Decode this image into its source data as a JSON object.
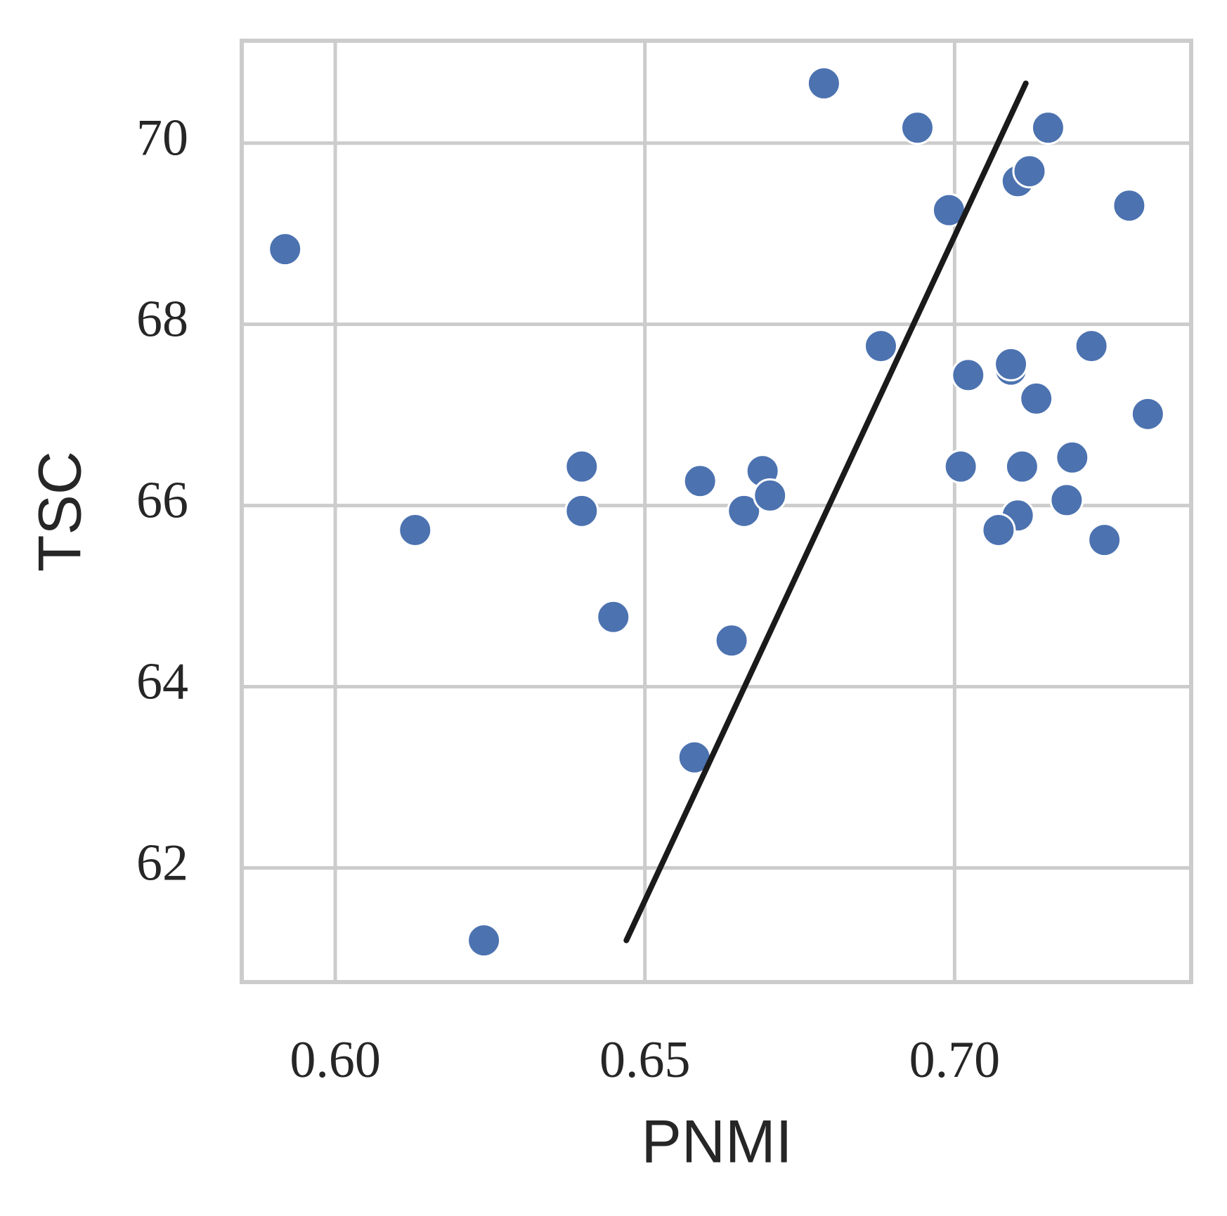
{
  "chart_data": {
    "type": "scatter",
    "x_label": "PNMI",
    "y_label": "TSC",
    "xlim": [
      0.5849,
      0.7382
    ],
    "ylim": [
      60.74,
      71.13
    ],
    "xticks": [
      {
        "value": 0.6,
        "label": "0.60"
      },
      {
        "value": 0.65,
        "label": "0.65"
      },
      {
        "value": 0.7,
        "label": "0.70"
      }
    ],
    "yticks": [
      62,
      64,
      66,
      68,
      70
    ],
    "grid": true,
    "color": "#4c72b0",
    "x": [
      0.5919,
      0.6129,
      0.624,
      0.6398,
      0.6398,
      0.6449,
      0.6589,
      0.658,
      0.664,
      0.666,
      0.669,
      0.6702,
      0.6789,
      0.6881,
      0.694,
      0.6991,
      0.7022,
      0.701,
      0.7091,
      0.7091,
      0.7102,
      0.7121,
      0.7151,
      0.7109,
      0.7102,
      0.7071,
      0.7132,
      0.7181,
      0.719,
      0.7221,
      0.7242,
      0.7282,
      0.7312
    ],
    "y": [
      68.83,
      65.73,
      61.2,
      66.43,
      65.94,
      64.77,
      66.27,
      63.22,
      64.51,
      65.94,
      66.38,
      66.11,
      70.66,
      67.76,
      70.17,
      69.26,
      67.44,
      66.43,
      67.5,
      67.56,
      69.58,
      69.69,
      70.17,
      66.43,
      65.89,
      65.73,
      67.18,
      66.06,
      66.53,
      67.76,
      65.62,
      69.31,
      67.01
    ],
    "fit_line": {
      "color": "#1a1a1a",
      "x": [
        0.647,
        0.7115
      ],
      "y": [
        61.2,
        70.66
      ]
    }
  }
}
